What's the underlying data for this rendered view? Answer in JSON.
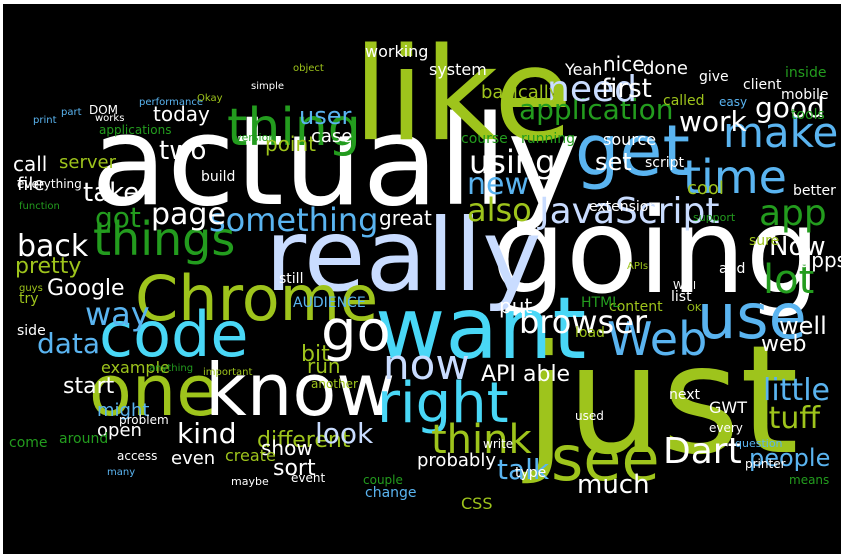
{
  "title": "",
  "palette": {
    "background": "#000000",
    "white": "#ffffff",
    "light_blue": "#c9dcff",
    "sky_blue": "#5ab4f0",
    "cyan": "#49d7f6",
    "lime": "#9ec41c",
    "green": "#239c1e",
    "grey": "#d7d7d7"
  },
  "words": [
    "actually",
    "just",
    "going",
    "like",
    "really",
    "want",
    "Chrome",
    "one",
    "get",
    "know",
    "code",
    "use",
    "right",
    "see",
    "Web",
    "go",
    "things",
    "thing",
    "time",
    "now",
    "JavaScript",
    "make",
    "something",
    "application",
    "think",
    "browser",
    "app",
    "lot",
    "Dart",
    "page",
    "using",
    "need",
    "also",
    "way",
    "new",
    "got",
    "little",
    "people",
    "good",
    "work",
    "stuff",
    "first",
    "Now",
    "back",
    "talk",
    "kind",
    "Google",
    "data",
    "take",
    "user",
    "different",
    "look",
    "much",
    "well",
    "able",
    "start",
    "web",
    "two",
    "apps",
    "set",
    "bit",
    "basically",
    "API",
    "pretty",
    "sort",
    "point",
    "show",
    "run",
    "case",
    "server",
    "AUDIENCE",
    "great",
    "come",
    "working",
    "today",
    "Yeah",
    "nice",
    "done",
    "system",
    "call",
    "file",
    "course",
    "running",
    "script",
    "source",
    "cool",
    "GWT",
    "CSS",
    "type",
    "extension",
    "content",
    "side",
    "might",
    "open",
    "build",
    "everything",
    "example",
    "even",
    "create",
    "probably",
    "event",
    "question",
    "tools",
    "mobile",
    "inside",
    "give",
    "client",
    "called",
    "easy",
    "better",
    "support",
    "sure",
    "add",
    "OK",
    "list",
    "Well",
    "put",
    "still",
    "HTML",
    "load",
    "used",
    "next",
    "around",
    "access",
    "many",
    "maybe",
    "couple",
    "change",
    "write",
    "printer",
    "means",
    "every",
    "APIs",
    "important",
    "anything",
    "guys",
    "try",
    "function",
    "works",
    "print",
    "part",
    "DOM",
    "performance",
    "applications",
    "version",
    "simple",
    "object",
    "Okay",
    "problem",
    "another"
  ]
}
